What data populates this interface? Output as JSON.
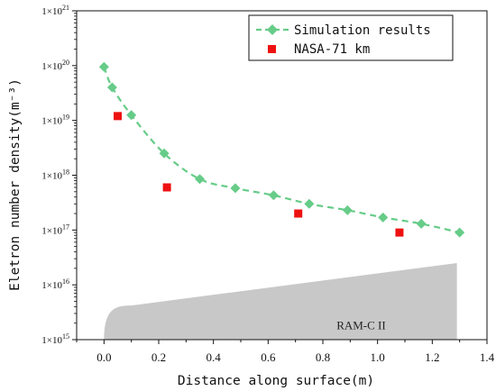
{
  "chart_data": {
    "type": "scatter",
    "xlabel": "Distance along surface(m)",
    "ylabel": "Eletron number density(m⁻³)",
    "xlim": [
      -0.1,
      1.4
    ],
    "ylim_log10": [
      15,
      21
    ],
    "yscale": "log",
    "x_ticks": [
      0.0,
      0.2,
      0.4,
      0.6,
      0.8,
      1.0,
      1.2,
      1.4
    ],
    "x_tick_labels": [
      "0.0",
      "0.2",
      "0.4",
      "0.6",
      "0.8",
      "1.0",
      "1.2",
      "1.4"
    ],
    "y_ticks": [
      {
        "base": "1×10",
        "exp": "15"
      },
      {
        "base": "1×10",
        "exp": "16"
      },
      {
        "base": "1×10",
        "exp": "17"
      },
      {
        "base": "1×10",
        "exp": "18"
      },
      {
        "base": "1×10",
        "exp": "19"
      },
      {
        "base": "1×10",
        "exp": "20"
      },
      {
        "base": "1×10",
        "exp": "21"
      }
    ],
    "legend_position": "top-right",
    "series": [
      {
        "name": "Simulation results",
        "marker": "diamond",
        "line": "dashed",
        "color": "#66cc88",
        "x": [
          0.0,
          0.03,
          0.1,
          0.22,
          0.35,
          0.48,
          0.62,
          0.75,
          0.89,
          1.02,
          1.16,
          1.3
        ],
        "y": [
          9.5e+19,
          4e+19,
          1.25e+19,
          2.5e+18,
          8.5e+17,
          5.8e+17,
          4.3e+17,
          3e+17,
          2.3e+17,
          1.7e+17,
          1.3e+17,
          9e+16
        ]
      },
      {
        "name": "NASA-71 km",
        "marker": "square",
        "line": "none",
        "color": "#ee1111",
        "x": [
          0.05,
          0.23,
          0.71,
          1.08
        ],
        "y": [
          1.2e+19,
          6e+17,
          2e+17,
          9e+16
        ]
      }
    ],
    "body_shape": {
      "label": "RAM-C II",
      "color": "#c8c8c8",
      "x_start": 0.0,
      "x_end": 1.29,
      "x_nose": 0.1,
      "y_base": 1000000000000000.0,
      "y_nose_top": 4200000000000000.0,
      "y_end_top": 2.5e+16
    }
  }
}
